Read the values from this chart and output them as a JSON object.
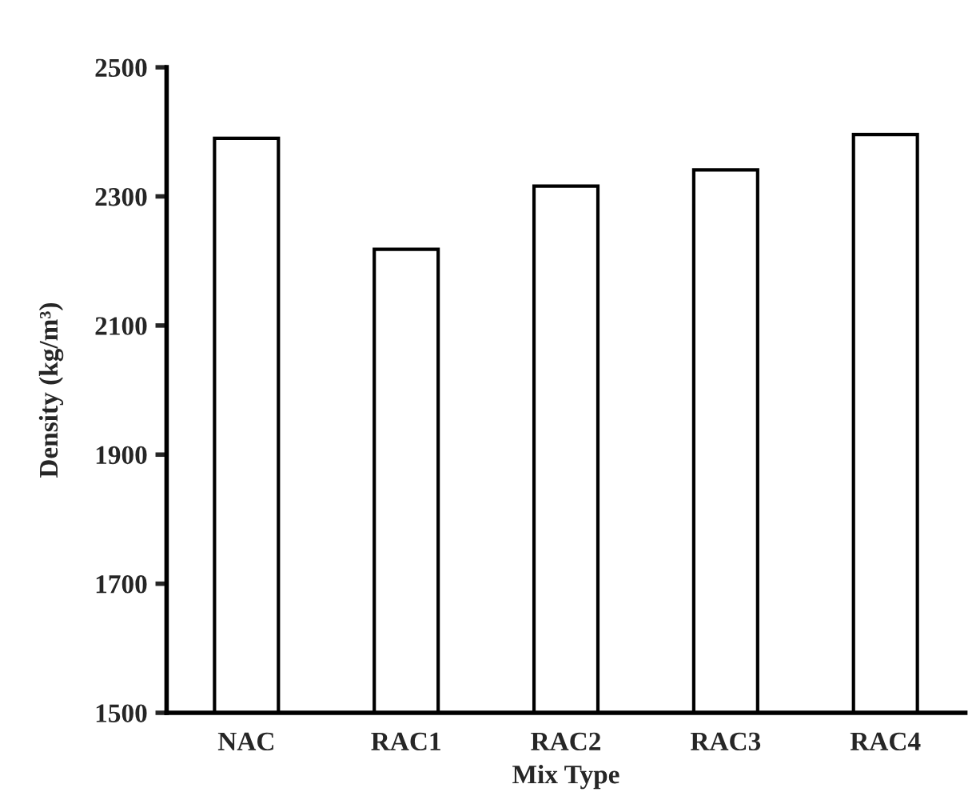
{
  "chart_data": {
    "type": "bar",
    "xlabel": "Mix Type",
    "ylabel": "Density (kg/m³)",
    "categories": [
      "NAC",
      "RAC1",
      "RAC2",
      "RAC3",
      "RAC4"
    ],
    "values": [
      2390,
      2218,
      2316,
      2341,
      2396
    ],
    "color": "#ffffff",
    "ylim": [
      1500,
      2500
    ],
    "yticks": [
      1500,
      1700,
      1900,
      2100,
      2300,
      2500
    ],
    "grid": false,
    "legend": false
  }
}
